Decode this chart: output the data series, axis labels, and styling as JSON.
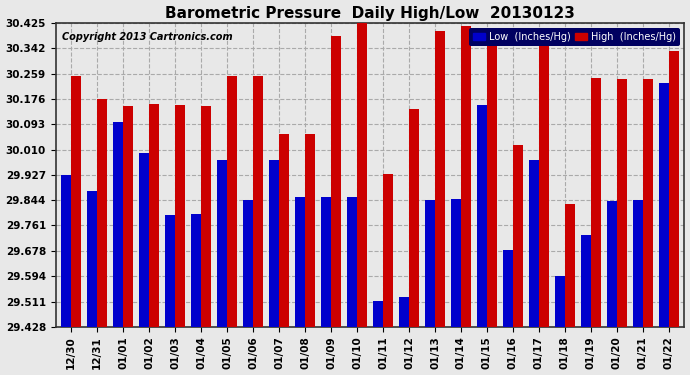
{
  "title": "Barometric Pressure  Daily High/Low  20130123",
  "copyright": "Copyright 2013 Cartronics.com",
  "categories": [
    "12/30",
    "12/31",
    "01/01",
    "01/02",
    "01/03",
    "01/04",
    "01/05",
    "01/06",
    "01/07",
    "01/08",
    "01/09",
    "01/10",
    "01/11",
    "01/12",
    "01/13",
    "01/14",
    "01/15",
    "01/16",
    "01/17",
    "01/18",
    "01/19",
    "01/20",
    "01/21",
    "01/22"
  ],
  "low_values": [
    29.927,
    29.874,
    30.1,
    30.0,
    29.795,
    29.8,
    29.975,
    29.845,
    29.975,
    29.855,
    29.855,
    29.855,
    29.514,
    29.525,
    29.845,
    29.848,
    30.155,
    29.68,
    29.975,
    29.595,
    29.73,
    29.84,
    29.845,
    30.23
  ],
  "high_values": [
    30.252,
    30.177,
    30.152,
    30.16,
    30.157,
    30.152,
    30.25,
    30.25,
    30.06,
    30.06,
    30.383,
    30.425,
    29.93,
    30.143,
    30.4,
    30.416,
    30.363,
    30.025,
    30.35,
    29.83,
    30.245,
    30.24,
    30.24,
    30.335
  ],
  "low_color": "#0000cc",
  "high_color": "#cc0000",
  "bg_color": "#e8e8e8",
  "plot_bg_color": "#e8e8e8",
  "grid_color": "#aaaaaa",
  "ymin": 29.428,
  "ymax": 30.425,
  "yticks": [
    29.428,
    29.511,
    29.594,
    29.678,
    29.761,
    29.844,
    29.927,
    30.01,
    30.093,
    30.176,
    30.259,
    30.342,
    30.425
  ],
  "legend_low_label": "Low  (Inches/Hg)",
  "legend_high_label": "High  (Inches/Hg)",
  "title_fontsize": 11,
  "copyright_fontsize": 7,
  "tick_fontsize": 7.5,
  "bar_width": 0.38
}
